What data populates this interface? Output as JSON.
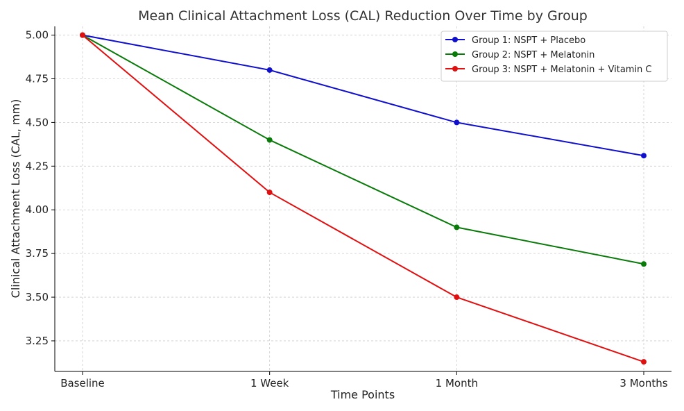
{
  "chart_data": {
    "type": "line",
    "title": "Mean Clinical Attachment Loss (CAL) Reduction Over Time by Group",
    "xlabel": "Time Points",
    "ylabel": "Clinical Attachment Loss (CAL, mm)",
    "categories": [
      "Baseline",
      "1 Week",
      "1 Month",
      "3 Months"
    ],
    "ylim": [
      3.075,
      5.05
    ],
    "yticks": [
      3.25,
      3.5,
      3.75,
      4.0,
      4.25,
      4.5,
      4.75,
      5.0
    ],
    "ytick_labels": [
      "3.25",
      "3.50",
      "3.75",
      "4.00",
      "4.25",
      "4.50",
      "4.75",
      "5.00"
    ],
    "grid": true,
    "legend_position": "top-right",
    "series": [
      {
        "name": "Group 1: NSPT + Placebo",
        "color": "#1010cc",
        "values": [
          5.0,
          4.8,
          4.5,
          4.31
        ]
      },
      {
        "name": "Group 2: NSPT + Melatonin",
        "color": "#0a7a0a",
        "values": [
          5.0,
          4.4,
          3.9,
          3.69
        ]
      },
      {
        "name": "Group 3: NSPT + Melatonin + Vitamin C",
        "color": "#e01010",
        "values": [
          5.0,
          4.1,
          3.5,
          3.13
        ]
      }
    ]
  }
}
